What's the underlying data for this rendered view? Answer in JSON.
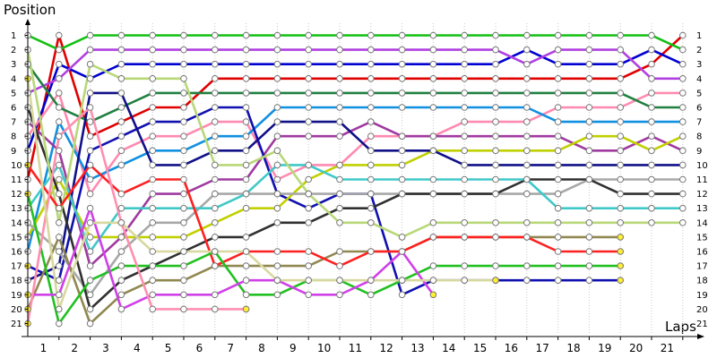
{
  "chart_data": {
    "type": "line",
    "title": "",
    "ylabel": "Position",
    "xlabel": "Laps",
    "x_ticks": [
      "1",
      "2",
      "3",
      "4",
      "5",
      "6",
      "7",
      "8",
      "9",
      "10",
      "11",
      "12",
      "13",
      "14",
      "15",
      "16",
      "17",
      "18",
      "19",
      "20",
      "21"
    ],
    "y_ticks": [
      "1",
      "2",
      "3",
      "4",
      "5",
      "6",
      "7",
      "8",
      "9",
      "10",
      "11",
      "12",
      "13",
      "14",
      "15",
      "16",
      "17",
      "18",
      "19",
      "20",
      "21"
    ],
    "right_labels": [
      "1",
      "2",
      "3",
      "4",
      "5",
      "6",
      "7",
      "8",
      "9",
      "10",
      "11",
      "12",
      "13",
      "14",
      "15",
      "16",
      "17",
      "18",
      "19",
      "20",
      "21"
    ],
    "xlim": [
      0,
      21
    ],
    "ylim": [
      1,
      21
    ],
    "grid": "vertical dotted",
    "series": [
      {
        "color": "#e00000",
        "values": [
          11,
          1,
          8,
          7,
          6,
          6,
          4,
          4,
          4,
          4,
          4,
          4,
          4,
          4,
          4,
          4,
          4,
          4,
          4,
          4,
          3,
          1
        ]
      },
      {
        "color": "#10c010",
        "values": [
          1,
          2,
          1,
          1,
          1,
          1,
          1,
          1,
          1,
          1,
          1,
          1,
          1,
          1,
          1,
          1,
          1,
          1,
          1,
          1,
          1,
          2
        ]
      },
      {
        "color": "#0000d0",
        "values": [
          9,
          3,
          4,
          3,
          3,
          3,
          3,
          3,
          3,
          3,
          3,
          3,
          3,
          3,
          3,
          3,
          2,
          3,
          3,
          3,
          2,
          3
        ]
      },
      {
        "color": "#b040e0",
        "values": [
          5,
          4,
          2,
          2,
          2,
          2,
          2,
          2,
          2,
          2,
          2,
          2,
          2,
          2,
          2,
          2,
          3,
          2,
          2,
          2,
          4,
          4
        ]
      },
      {
        "color": "#ff8ab0",
        "values": [
          8,
          5,
          12,
          9,
          8,
          8,
          7,
          7,
          11,
          10,
          10,
          8,
          8,
          8,
          7,
          7,
          7,
          6,
          6,
          6,
          5,
          5
        ]
      },
      {
        "color": "#208040",
        "values": [
          3,
          6,
          7,
          6,
          5,
          5,
          5,
          5,
          5,
          5,
          5,
          5,
          5,
          5,
          5,
          5,
          5,
          5,
          5,
          5,
          6,
          6
        ]
      },
      {
        "color": "#1090e0",
        "values": [
          16,
          7,
          11,
          10,
          9,
          9,
          8,
          8,
          6,
          6,
          6,
          6,
          6,
          6,
          6,
          6,
          6,
          7,
          7,
          7,
          7,
          7
        ]
      },
      {
        "color": "#a03aa0",
        "values": [
          7,
          9,
          17,
          15,
          12,
          12,
          11,
          11,
          8,
          8,
          8,
          7,
          8,
          8,
          8,
          8,
          8,
          8,
          9,
          9,
          8,
          9
        ]
      },
      {
        "color": "#1010b0",
        "values": [
          17,
          18,
          9,
          8,
          7,
          7,
          6,
          6,
          12,
          13,
          12,
          12,
          19,
          18,
          18,
          18,
          18,
          18,
          18,
          18
        ]
      },
      {
        "color": "#c0d000",
        "values": [
          15,
          11,
          15,
          15,
          15,
          15,
          14,
          13,
          13,
          11,
          10,
          10,
          10,
          9,
          9,
          9,
          9,
          9,
          8,
          8,
          9,
          8
        ]
      },
      {
        "color": "#101088",
        "values": [
          18,
          17,
          5,
          5,
          10,
          10,
          9,
          9,
          7,
          7,
          7,
          9,
          9,
          9,
          10,
          10,
          10,
          10,
          10,
          10,
          10,
          10
        ]
      },
      {
        "color": "#a8a8a8",
        "values": [
          14,
          16,
          19,
          16,
          14,
          14,
          12,
          12,
          12,
          12,
          12,
          12,
          12,
          12,
          12,
          12,
          12,
          12,
          11,
          11,
          11,
          11
        ]
      },
      {
        "color": "#303030",
        "values": [
          6,
          12,
          20,
          18,
          17,
          16,
          15,
          15,
          14,
          14,
          13,
          13,
          12,
          12,
          12,
          12,
          11,
          11,
          11,
          12,
          12,
          12
        ]
      },
      {
        "color": "#40c8c8",
        "values": [
          13,
          10,
          16,
          13,
          13,
          13,
          13,
          12,
          10,
          10,
          11,
          11,
          11,
          11,
          11,
          11,
          11,
          13,
          13,
          13,
          13,
          13
        ]
      },
      {
        "color": "#b8d878",
        "values": [
          2,
          14,
          3,
          4,
          4,
          4,
          10,
          10,
          9,
          12,
          14,
          14,
          15,
          14,
          14,
          14,
          14,
          14,
          14,
          14,
          14,
          14
        ]
      },
      {
        "color": "#908850",
        "values": [
          20,
          15,
          21,
          19,
          18,
          18,
          17,
          17,
          17,
          17,
          16,
          16,
          16,
          15,
          15,
          15,
          15,
          15,
          15,
          15
        ]
      },
      {
        "color": "#ff2020",
        "values": [
          10,
          13,
          10,
          12,
          11,
          11,
          17,
          16,
          16,
          16,
          17,
          16,
          16,
          15,
          15,
          15,
          15,
          16,
          16,
          16
        ]
      },
      {
        "color": "#20c020",
        "values": [
          12,
          21,
          18,
          17,
          17,
          17,
          16,
          19,
          19,
          18,
          18,
          19,
          18,
          17,
          17,
          17,
          17,
          17,
          17,
          17
        ]
      },
      {
        "color": "#d040e8",
        "values": [
          19,
          19,
          13,
          20,
          19,
          19,
          19,
          18,
          18,
          19,
          19,
          18,
          16,
          19
        ]
      },
      {
        "color": "#ff8fb0",
        "values": [
          21,
          8,
          6,
          14,
          20,
          20,
          20,
          20
        ]
      },
      {
        "color": "#d8d8a0",
        "values": [
          4,
          20,
          14,
          14,
          16,
          16,
          16,
          16,
          18,
          18,
          18,
          18,
          18,
          18,
          18,
          18
        ]
      }
    ]
  }
}
